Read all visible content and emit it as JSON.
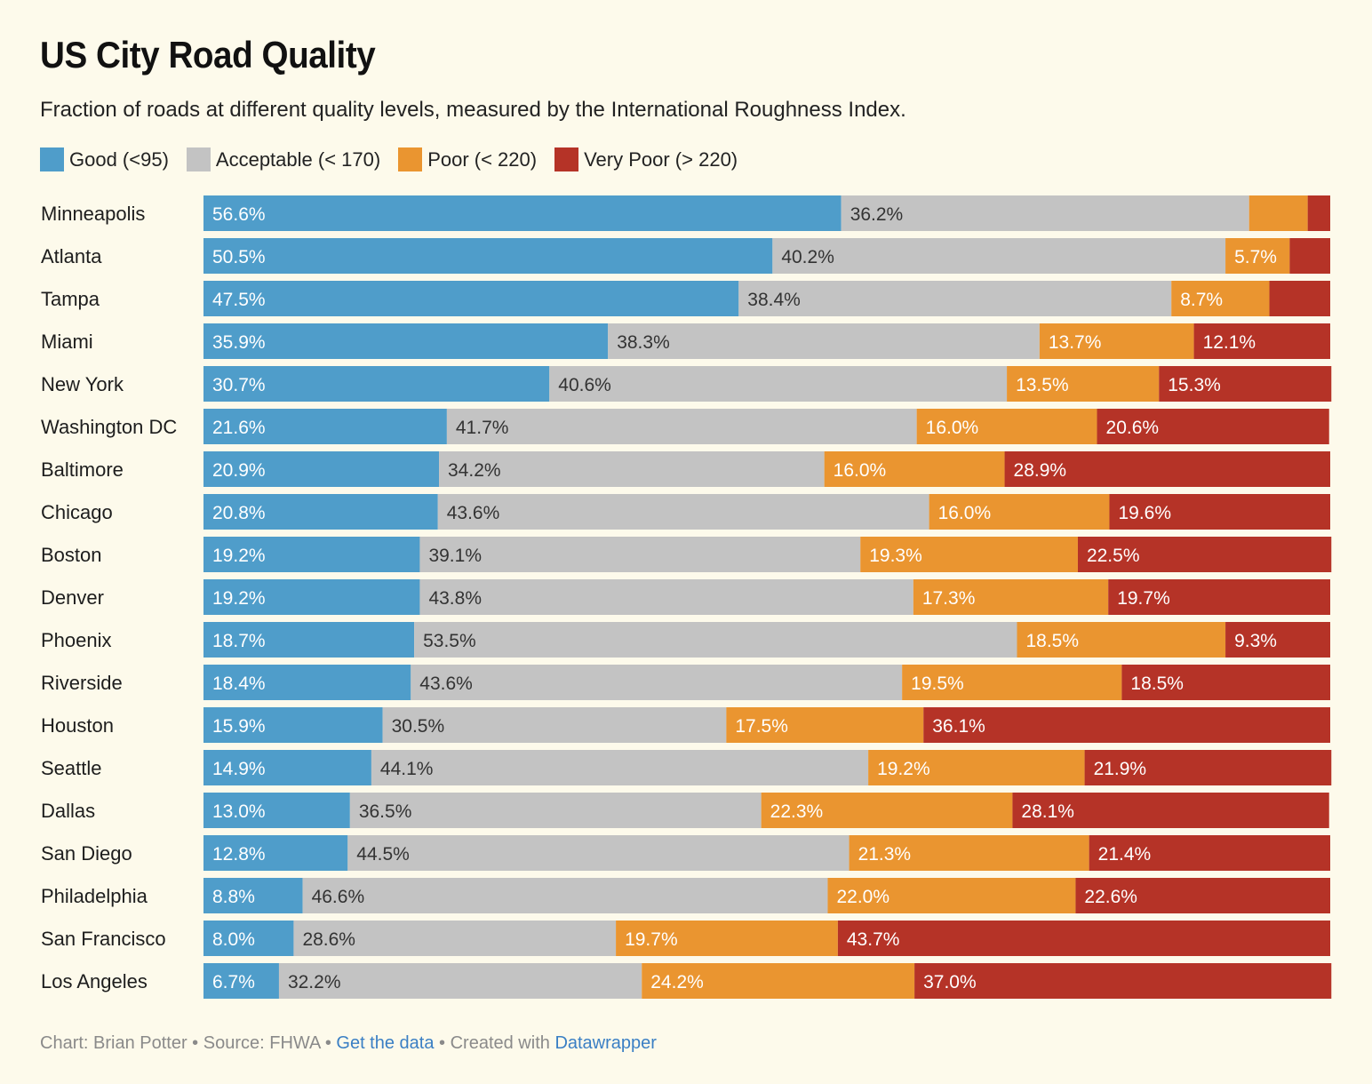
{
  "chart_data": {
    "type": "bar",
    "orientation": "horizontal",
    "stacked": true,
    "title": "US City Road Quality",
    "subtitle": "Fraction of roads at different quality levels, measured by the International Roughness Index.",
    "xlabel": "",
    "ylabel": "",
    "xlim": [
      0,
      100
    ],
    "grid": false,
    "legend_position": "top-left",
    "legend": [
      {
        "label": "Good (<95)",
        "color": "#4f9dca"
      },
      {
        "label": "Acceptable (< 170)",
        "color": "#c3c3c3"
      },
      {
        "label": "Poor (< 220)",
        "color": "#ea9530"
      },
      {
        "label": "Very Poor (> 220)",
        "color": "#b53327"
      }
    ],
    "categories": [
      "Minneapolis",
      "Atlanta",
      "Tampa",
      "Miami",
      "New York",
      "Washington DC",
      "Baltimore",
      "Chicago",
      "Boston",
      "Denver",
      "Phoenix",
      "Riverside",
      "Houston",
      "Seattle",
      "Dallas",
      "San Diego",
      "Philadelphia",
      "San Francisco",
      "Los Angeles"
    ],
    "series": [
      {
        "name": "Good (<95)",
        "color": "#4f9dca",
        "label_color": "#ffffff",
        "values": [
          56.6,
          50.5,
          47.5,
          35.9,
          30.7,
          21.6,
          20.9,
          20.8,
          19.2,
          19.2,
          18.7,
          18.4,
          15.9,
          14.9,
          13.0,
          12.8,
          8.8,
          8.0,
          6.7
        ],
        "labels": [
          "56.6%",
          "50.5%",
          "47.5%",
          "35.9%",
          "30.7%",
          "21.6%",
          "20.9%",
          "20.8%",
          "19.2%",
          "19.2%",
          "18.7%",
          "18.4%",
          "15.9%",
          "14.9%",
          "13.0%",
          "12.8%",
          "8.8%",
          "8.0%",
          "6.7%"
        ]
      },
      {
        "name": "Acceptable (< 170)",
        "color": "#c3c3c3",
        "label_color": "#333333",
        "values": [
          36.2,
          40.2,
          38.4,
          38.3,
          40.6,
          41.7,
          34.2,
          43.6,
          39.1,
          43.8,
          53.5,
          43.6,
          30.5,
          44.1,
          36.5,
          44.5,
          46.6,
          28.6,
          32.2
        ],
        "labels": [
          "36.2%",
          "40.2%",
          "38.4%",
          "38.3%",
          "40.6%",
          "41.7%",
          "34.2%",
          "43.6%",
          "39.1%",
          "43.8%",
          "53.5%",
          "43.6%",
          "30.5%",
          "44.1%",
          "36.5%",
          "44.5%",
          "46.6%",
          "28.6%",
          "32.2%"
        ]
      },
      {
        "name": "Poor (< 220)",
        "color": "#ea9530",
        "label_color": "#ffffff",
        "values": [
          5.2,
          5.7,
          8.7,
          13.7,
          13.5,
          16.0,
          16.0,
          16.0,
          19.3,
          17.3,
          18.5,
          19.5,
          17.5,
          19.2,
          22.3,
          21.3,
          22.0,
          19.7,
          24.2
        ],
        "labels": [
          "",
          "5.7%",
          "8.7%",
          "13.7%",
          "13.5%",
          "16.0%",
          "16.0%",
          "16.0%",
          "19.3%",
          "17.3%",
          "18.5%",
          "19.5%",
          "17.5%",
          "19.2%",
          "22.3%",
          "21.3%",
          "22.0%",
          "19.7%",
          "24.2%"
        ]
      },
      {
        "name": "Very Poor (> 220)",
        "color": "#b53327",
        "label_color": "#ffffff",
        "values": [
          2.0,
          3.6,
          5.4,
          12.1,
          15.3,
          20.6,
          28.9,
          19.6,
          22.5,
          19.7,
          9.3,
          18.5,
          36.1,
          21.9,
          28.1,
          21.4,
          22.6,
          43.7,
          37.0
        ],
        "labels": [
          "",
          "",
          "",
          "12.1%",
          "15.3%",
          "20.6%",
          "28.9%",
          "19.6%",
          "22.5%",
          "19.7%",
          "9.3%",
          "18.5%",
          "36.1%",
          "21.9%",
          "28.1%",
          "21.4%",
          "22.6%",
          "43.7%",
          "37.0%"
        ]
      }
    ]
  },
  "footer": {
    "chart_credit": "Chart: Brian Potter",
    "separator": " • ",
    "source": "Source: FHWA",
    "get_data_link": "Get the data",
    "created_with": "Created with",
    "datawrapper_link": "Datawrapper"
  }
}
